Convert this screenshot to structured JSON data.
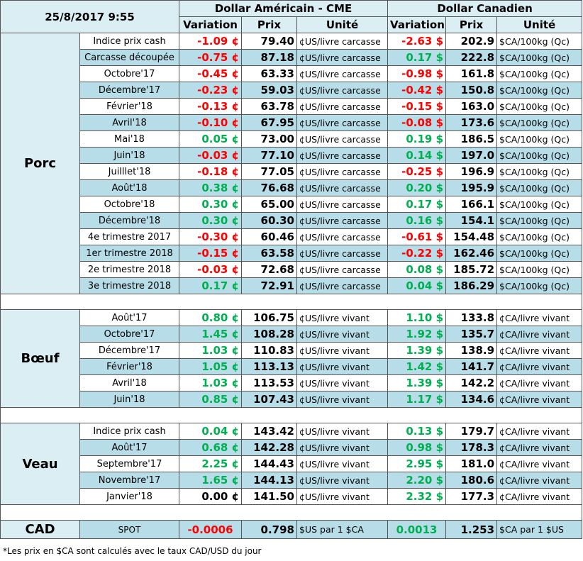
{
  "header": {
    "timestamp": "25/8/2017 9:55",
    "usd": {
      "title": "Dollar Américain - CME",
      "variation": "Variation",
      "prix": "Prix",
      "unite": "Unité"
    },
    "cad": {
      "title": "Dollar Canadien",
      "variation": "Variation",
      "prix": "Prix",
      "unite": "Unité"
    }
  },
  "sections": [
    {
      "label": "Porc",
      "rows": [
        [
          "Indice prix cash",
          "-1.09 ¢",
          "79.40",
          "¢US/livre carcasse",
          "-2.63 $",
          "202.9",
          "$CA/100kg (Qc)"
        ],
        [
          "Carcasse découpée",
          "-0.75 ¢",
          "87.18",
          "¢US/livre carcasse",
          "0.17 $",
          "222.8",
          "$CA/100kg (Qc)"
        ],
        [
          "Octobre'17",
          "-0.45 ¢",
          "63.33",
          "¢US/livre carcasse",
          "-0.98 $",
          "161.8",
          "$CA/100kg (Qc)"
        ],
        [
          "Décembre'17",
          "-0.23 ¢",
          "59.03",
          "¢US/livre carcasse",
          "-0.42 $",
          "150.8",
          "$CA/100kg (Qc)"
        ],
        [
          "Février'18",
          "-0.13 ¢",
          "63.78",
          "¢US/livre carcasse",
          "-0.15 $",
          "163.0",
          "$CA/100kg (Qc)"
        ],
        [
          "Avril'18",
          "-0.10 ¢",
          "67.95",
          "¢US/livre carcasse",
          "-0.08 $",
          "173.6",
          "$CA/100kg (Qc)"
        ],
        [
          "Mai'18",
          "0.05 ¢",
          "73.00",
          "¢US/livre carcasse",
          "0.19 $",
          "186.5",
          "$CA/100kg (Qc)"
        ],
        [
          "Juin'18",
          "-0.03 ¢",
          "77.10",
          "¢US/livre carcasse",
          "0.14 $",
          "197.0",
          "$CA/100kg (Qc)"
        ],
        [
          "Juilllet'18",
          "-0.18 ¢",
          "77.05",
          "¢US/livre carcasse",
          "-0.25 $",
          "196.9",
          "$CA/100kg (Qc)"
        ],
        [
          "Août'18",
          "0.38 ¢",
          "76.68",
          "¢US/livre carcasse",
          "0.20 $",
          "195.9",
          "$CA/100kg (Qc)"
        ],
        [
          "Octobre'18",
          "0.30 ¢",
          "65.00",
          "¢US/livre carcasse",
          "0.17 $",
          "166.1",
          "$CA/100kg (Qc)"
        ],
        [
          "Décembre'18",
          "0.30 ¢",
          "60.30",
          "¢US/livre carcasse",
          "0.16 $",
          "154.1",
          "$CA/100kg (Qc)"
        ],
        [
          "4e trimestre 2017",
          "-0.30 ¢",
          "60.46",
          "¢US/livre carcasse",
          "-0.61 $",
          "154.48",
          "$CA/100kg (Qc)"
        ],
        [
          "1er trimestre 2018",
          "-0.15 ¢",
          "63.58",
          "¢US/livre carcasse",
          "-0.22 $",
          "162.46",
          "$CA/100kg (Qc)"
        ],
        [
          "2e trimestre 2018",
          "-0.03 ¢",
          "72.68",
          "¢US/livre carcasse",
          "0.08 $",
          "185.72",
          "$CA/100kg (Qc)"
        ],
        [
          "3e trimestre 2018",
          "0.17 ¢",
          "72.91",
          "¢US/livre carcasse",
          "0.04 $",
          "186.29",
          "$CA/100kg (Qc)"
        ]
      ]
    },
    {
      "label": "Bœuf",
      "rows": [
        [
          "Août'17",
          "0.80 ¢",
          "106.75",
          "¢US/livre vivant",
          "1.10 $",
          "133.8",
          "¢CA/livre vivant"
        ],
        [
          "Octobre'17",
          "1.45 ¢",
          "108.28",
          "¢US/livre vivant",
          "1.92 $",
          "135.7",
          "¢CA/livre vivant"
        ],
        [
          "Décembre'17",
          "1.03 ¢",
          "110.83",
          "¢US/livre vivant",
          "1.39 $",
          "138.9",
          "¢CA/livre vivant"
        ],
        [
          "Février'18",
          "1.05 ¢",
          "113.13",
          "¢US/livre vivant",
          "1.42 $",
          "141.7",
          "¢CA/livre vivant"
        ],
        [
          "Avril'18",
          "1.03 ¢",
          "113.53",
          "¢US/livre vivant",
          "1.39 $",
          "142.2",
          "¢CA/livre vivant"
        ],
        [
          "Juin'18",
          "0.85 ¢",
          "107.43",
          "¢US/livre vivant",
          "1.17 $",
          "134.6",
          "¢CA/livre vivant"
        ]
      ]
    },
    {
      "label": "Veau",
      "rows": [
        [
          "Indice prix cash",
          "0.04 ¢",
          "143.42",
          "¢US/livre vivant",
          "0.13 $",
          "179.7",
          "¢CA/livre vivant"
        ],
        [
          "Août'17",
          "0.68 ¢",
          "142.28",
          "¢US/livre vivant",
          "0.98 $",
          "178.3",
          "¢CA/livre vivant"
        ],
        [
          "Septembre'17",
          "2.25 ¢",
          "144.43",
          "¢US/livre vivant",
          "2.95 $",
          "181.0",
          "¢CA/livre vivant"
        ],
        [
          "Novembre'17",
          "1.65 ¢",
          "144.13",
          "¢US/livre vivant",
          "2.20 $",
          "180.6",
          "¢CA/livre vivant"
        ],
        [
          "Janvier'18",
          "0.00 ¢",
          "141.50",
          "¢US/livre vivant",
          "2.32 $",
          "177.3",
          "¢CA/livre vivant"
        ]
      ]
    }
  ],
  "cad": {
    "label": "CAD",
    "row": [
      "SPOT",
      "-0.0006",
      "0.798",
      "$US par 1 $CA",
      "0.0013",
      "1.253",
      "$CA par 1 $US"
    ]
  },
  "footnote": "*Les  prix en $CA sont calculés avec le taux CAD/USD du jour"
}
